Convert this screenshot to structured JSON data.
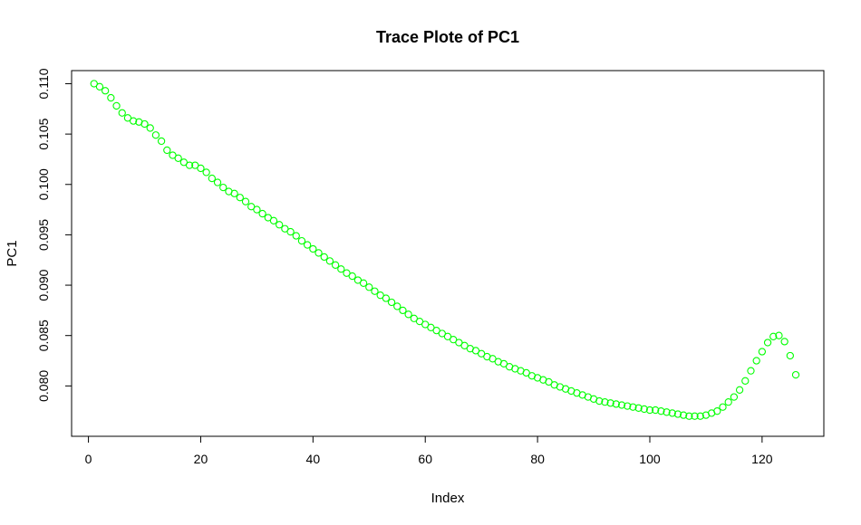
{
  "chart_data": {
    "type": "scatter",
    "title": "Trace Plote of PC1",
    "xlabel": "Index",
    "ylabel": "PC1",
    "xlim": [
      -3,
      131
    ],
    "ylim": [
      0.075,
      0.1113
    ],
    "x_ticks": [
      0,
      20,
      40,
      60,
      80,
      100,
      120
    ],
    "x_tick_labels": [
      "0",
      "20",
      "40",
      "60",
      "80",
      "100",
      "120"
    ],
    "y_ticks": [
      0.08,
      0.085,
      0.09,
      0.095,
      0.1,
      0.105,
      0.11
    ],
    "y_tick_labels": [
      "0.080",
      "0.085",
      "0.090",
      "0.095",
      "0.100",
      "0.105",
      "0.110"
    ],
    "marker": "open-circle",
    "color": "#00ff00",
    "grid": false,
    "legend": "none",
    "series": [
      {
        "x": [
          1,
          2,
          3,
          4,
          5,
          6,
          7,
          8,
          9,
          10,
          11,
          12,
          13,
          14,
          15,
          16,
          17,
          18,
          19,
          20,
          21,
          22,
          23,
          24,
          25,
          26,
          27,
          28,
          29,
          30,
          31,
          32,
          33,
          34,
          35,
          36,
          37,
          38,
          39,
          40,
          41,
          42,
          43,
          44,
          45,
          46,
          47,
          48,
          49,
          50,
          51,
          52,
          53,
          54,
          55,
          56,
          57,
          58,
          59,
          60,
          61,
          62,
          63,
          64,
          65,
          66,
          67,
          68,
          69,
          70,
          71,
          72,
          73,
          74,
          75,
          76,
          77,
          78,
          79,
          80,
          81,
          82,
          83,
          84,
          85,
          86,
          87,
          88,
          89,
          90,
          91,
          92,
          93,
          94,
          95,
          96,
          97,
          98,
          99,
          100,
          101,
          102,
          103,
          104,
          105,
          106,
          107,
          108,
          109,
          110,
          111,
          112,
          113,
          114,
          115,
          116,
          117,
          118,
          119,
          120,
          121,
          122,
          123,
          124,
          125,
          126
        ],
        "values": [
          0.11,
          0.1097,
          0.1093,
          0.1086,
          0.1078,
          0.1071,
          0.1066,
          0.1063,
          0.1062,
          0.106,
          0.1056,
          0.1049,
          0.1043,
          0.1034,
          0.1029,
          0.1026,
          0.1022,
          0.1019,
          0.1019,
          0.1016,
          0.1012,
          0.1006,
          0.1002,
          0.0997,
          0.0993,
          0.0991,
          0.0987,
          0.0983,
          0.0978,
          0.0975,
          0.0971,
          0.0967,
          0.0964,
          0.096,
          0.0956,
          0.0953,
          0.0949,
          0.0944,
          0.094,
          0.0936,
          0.0932,
          0.0928,
          0.0924,
          0.092,
          0.0916,
          0.0912,
          0.0909,
          0.0905,
          0.0902,
          0.0898,
          0.0894,
          0.089,
          0.0887,
          0.0883,
          0.0879,
          0.0875,
          0.0871,
          0.0867,
          0.0864,
          0.0861,
          0.0858,
          0.0855,
          0.0852,
          0.0849,
          0.0846,
          0.0843,
          0.084,
          0.0837,
          0.0835,
          0.0832,
          0.0829,
          0.0827,
          0.0824,
          0.0822,
          0.0819,
          0.0817,
          0.0815,
          0.0813,
          0.081,
          0.0808,
          0.0806,
          0.0804,
          0.0801,
          0.0799,
          0.0797,
          0.0795,
          0.0793,
          0.0791,
          0.0789,
          0.0787,
          0.0785,
          0.0784,
          0.0783,
          0.0782,
          0.0781,
          0.078,
          0.0779,
          0.0778,
          0.0777,
          0.0776,
          0.0776,
          0.0775,
          0.0774,
          0.0773,
          0.0772,
          0.0771,
          0.077,
          0.077,
          0.077,
          0.0771,
          0.0773,
          0.0775,
          0.0779,
          0.0784,
          0.0789,
          0.0796,
          0.0805,
          0.0815,
          0.0825,
          0.0834,
          0.0843,
          0.0849,
          0.085,
          0.0844,
          0.083,
          0.0811
        ]
      }
    ]
  }
}
